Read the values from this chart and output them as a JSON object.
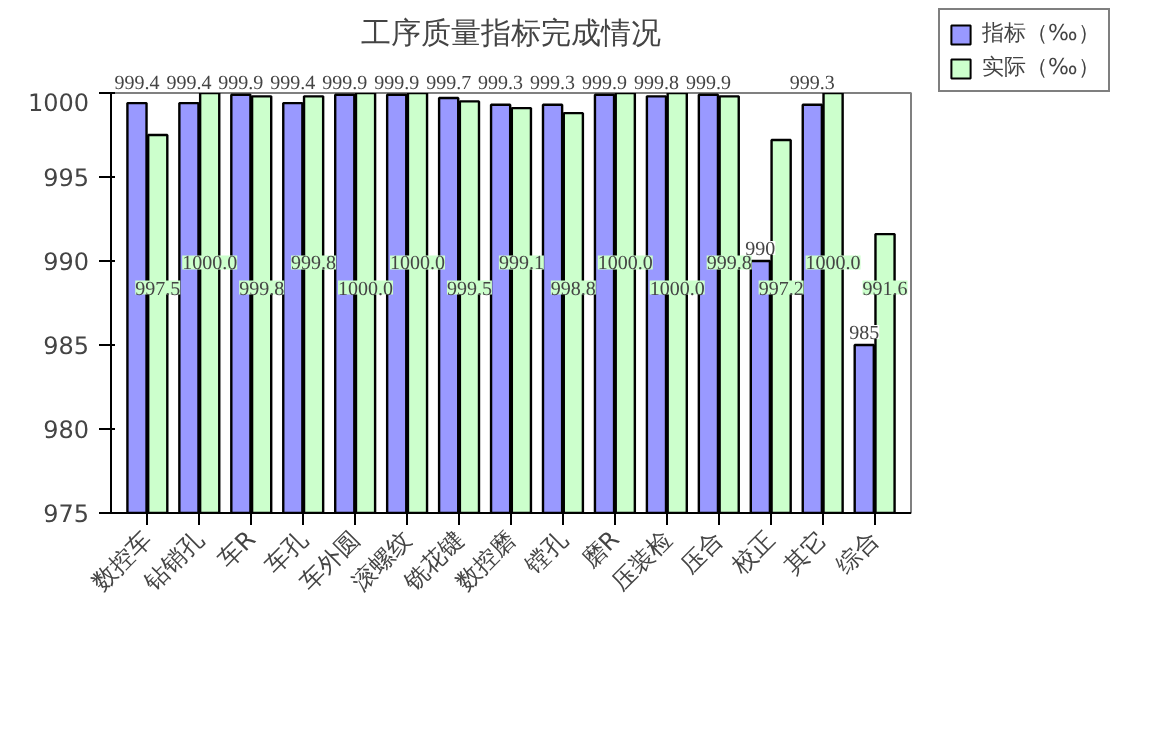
{
  "chart_data": {
    "type": "bar",
    "title": "工序质量指标完成情况",
    "categories": [
      "数控车",
      "钻销孔",
      "车R",
      "车孔",
      "车外圆",
      "滚螺纹",
      "铣花键",
      "数控磨",
      "镗孔",
      "磨R",
      "压装检",
      "压合",
      "校正",
      "其它",
      "综合"
    ],
    "series": [
      {
        "name": "指标（‰）",
        "color": "#9999ff",
        "values": [
          999.4,
          999.4,
          999.9,
          999.4,
          999.9,
          999.9,
          999.7,
          999.3,
          999.3,
          999.9,
          999.8,
          999.9,
          990,
          999.3,
          985
        ],
        "value_labels": [
          "999.4",
          "999.4",
          "999.9",
          "999.4",
          "999.9",
          "999.9",
          "999.7",
          "999.3",
          "999.3",
          "999.9",
          "999.8",
          "999.9",
          "990",
          "999.3",
          "985"
        ]
      },
      {
        "name": "实际（‰）",
        "color": "#ccffcc",
        "values": [
          997.5,
          1000.0,
          999.8,
          999.8,
          1000.0,
          1000.0,
          999.5,
          999.1,
          998.8,
          1000.0,
          1000.0,
          999.8,
          997.2,
          1000.0,
          991.6
        ],
        "value_labels": [
          "997.5",
          "1000.0",
          "999.8",
          "999.8",
          "1000.0",
          "1000.0",
          "999.5",
          "999.1",
          "998.8",
          "1000.0",
          "1000.0",
          "999.8",
          "997.2",
          "1000.0",
          "991.6"
        ]
      }
    ],
    "ylim": [
      975,
      1000
    ],
    "yticks": [
      975,
      980,
      985,
      990,
      995,
      1000
    ],
    "grid": false,
    "legend": "top right"
  }
}
